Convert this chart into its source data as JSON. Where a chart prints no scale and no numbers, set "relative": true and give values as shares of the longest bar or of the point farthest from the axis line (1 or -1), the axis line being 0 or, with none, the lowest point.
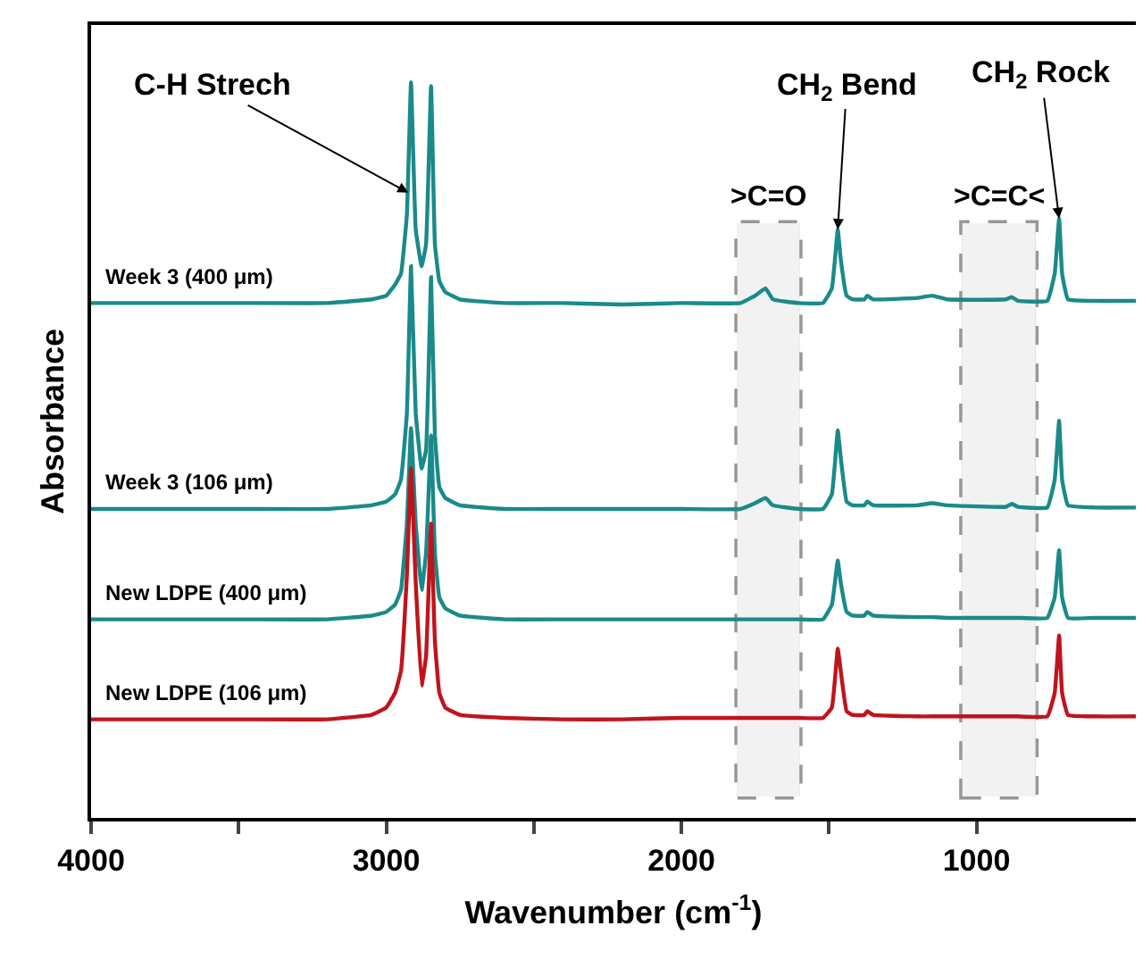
{
  "chart_data": {
    "type": "line",
    "relative": true,
    "xlabel": "Wavenumber (cm$^{-1}$)",
    "ylabel": "Absorbance",
    "xlim": [
      4000,
      460
    ],
    "xticks": [
      4000,
      {
        "value": 3500,
        "label": null
      },
      3000,
      {
        "value": 2500,
        "label": null
      },
      2000,
      {
        "value": 1500,
        "label": null
      },
      1000
    ],
    "x": [
      4000,
      3500,
      3200,
      3050,
      3000,
      2970,
      2950,
      2930,
      2916,
      2900,
      2880,
      2865,
      2848,
      2835,
      2820,
      2800,
      2750,
      2600,
      2400,
      2200,
      2000,
      1800,
      1750,
      1715,
      1690,
      1600,
      1520,
      1490,
      1470,
      1460,
      1440,
      1420,
      1380,
      1370,
      1350,
      1200,
      1150,
      1100,
      900,
      880,
      860,
      760,
      735,
      720,
      710,
      690,
      600,
      460
    ],
    "series": [
      {
        "name": "Week 3 (400 μm)",
        "color": "#1a8a8a",
        "values": [
          0.7,
          0.7,
          0.7,
          0.705,
          0.71,
          0.725,
          0.74,
          0.82,
          1.0,
          0.8,
          0.75,
          0.78,
          0.995,
          0.78,
          0.73,
          0.715,
          0.705,
          0.7,
          0.7,
          0.698,
          0.7,
          0.7,
          0.71,
          0.72,
          0.705,
          0.7,
          0.7,
          0.72,
          0.8,
          0.76,
          0.71,
          0.705,
          0.705,
          0.71,
          0.705,
          0.707,
          0.71,
          0.705,
          0.705,
          0.708,
          0.703,
          0.703,
          0.74,
          0.815,
          0.74,
          0.705,
          0.703,
          0.703
        ]
      },
      {
        "name": "Week 3 (106 μm)",
        "color": "#1a8a8a",
        "values": [
          0.42,
          0.42,
          0.42,
          0.425,
          0.43,
          0.44,
          0.46,
          0.55,
          0.75,
          0.55,
          0.475,
          0.5,
          0.735,
          0.52,
          0.45,
          0.435,
          0.425,
          0.42,
          0.42,
          0.42,
          0.42,
          0.42,
          0.428,
          0.435,
          0.425,
          0.42,
          0.42,
          0.44,
          0.527,
          0.49,
          0.43,
          0.425,
          0.425,
          0.43,
          0.425,
          0.425,
          0.428,
          0.425,
          0.423,
          0.427,
          0.423,
          0.422,
          0.46,
          0.54,
          0.46,
          0.425,
          0.422,
          0.422
        ]
      },
      {
        "name": "New LDPE (400 μm)",
        "color": "#1a8a8a",
        "values": [
          0.27,
          0.27,
          0.27,
          0.275,
          0.28,
          0.29,
          0.31,
          0.4,
          0.53,
          0.4,
          0.31,
          0.36,
          0.52,
          0.36,
          0.3,
          0.285,
          0.275,
          0.27,
          0.27,
          0.27,
          0.27,
          0.27,
          0.27,
          0.27,
          0.27,
          0.27,
          0.27,
          0.29,
          0.35,
          0.32,
          0.28,
          0.275,
          0.275,
          0.28,
          0.275,
          0.273,
          0.273,
          0.272,
          0.272,
          0.272,
          0.272,
          0.272,
          0.3,
          0.364,
          0.3,
          0.272,
          0.272,
          0.272
        ]
      },
      {
        "name": "New LDPE (106 μm)",
        "color": "#c0141c",
        "values": [
          0.134,
          0.134,
          0.134,
          0.14,
          0.15,
          0.17,
          0.2,
          0.33,
          0.475,
          0.32,
          0.18,
          0.22,
          0.4,
          0.24,
          0.17,
          0.15,
          0.14,
          0.136,
          0.134,
          0.134,
          0.136,
          0.136,
          0.136,
          0.136,
          0.136,
          0.136,
          0.136,
          0.15,
          0.23,
          0.2,
          0.145,
          0.14,
          0.14,
          0.145,
          0.14,
          0.138,
          0.138,
          0.138,
          0.138,
          0.138,
          0.138,
          0.138,
          0.17,
          0.248,
          0.17,
          0.14,
          0.138,
          0.138
        ]
      }
    ],
    "bands": [
      {
        "axis": "x",
        "from": 1810,
        "to": 1600,
        "label": ">C=O",
        "color": "#8c8c8c"
      },
      {
        "axis": "x",
        "from": 1048,
        "to": 800,
        "label": ">C=C<",
        "color": "#8c8c8c"
      }
    ],
    "annotations": [
      {
        "text": "C-H Strech",
        "x": 2925,
        "y": 0.85
      },
      {
        "text": "CH$_{2}$ Bend",
        "x": 1470,
        "y": 0.8
      },
      {
        "text": "CH$_{2}$ Rock",
        "x": 720,
        "y": 0.815
      }
    ],
    "legend": false,
    "grid": false,
    "marker": "none",
    "line_style": "solid"
  }
}
